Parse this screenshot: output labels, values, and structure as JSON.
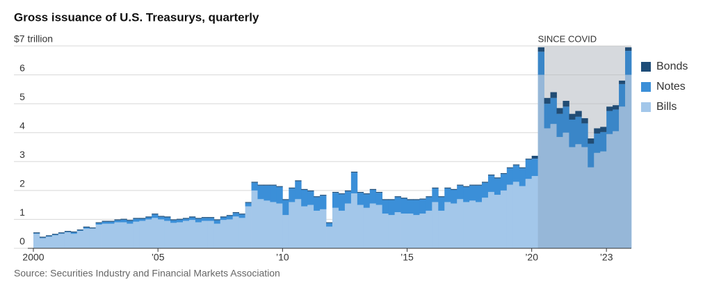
{
  "chart_data": {
    "type": "stacked-step-area",
    "title": "Gross issuance of U.S. Treasurys, quarterly",
    "source": "Source: Securities Industry and Financial Markets Association",
    "annotation": {
      "text": "SINCE COVID",
      "x0": 2020.25,
      "x1": 2024
    },
    "xlim": [
      2000,
      2024
    ],
    "xticks": [
      {
        "value": 2000,
        "label": "2000"
      },
      {
        "value": 2005,
        "label": "’05"
      },
      {
        "value": 2010,
        "label": "’10"
      },
      {
        "value": 2015,
        "label": "’15"
      },
      {
        "value": 2020,
        "label": "’20"
      },
      {
        "value": 2023,
        "label": "’23"
      }
    ],
    "ylim": [
      0,
      7
    ],
    "yticks": [
      0,
      1,
      2,
      3,
      4,
      5,
      6,
      {
        "value": 7,
        "label": "$7 trillion"
      }
    ],
    "grid": true,
    "legend": "right",
    "x": [
      2000,
      2000.25,
      2000.5,
      2000.75,
      2001,
      2001.25,
      2001.5,
      2001.75,
      2002,
      2002.25,
      2002.5,
      2002.75,
      2003,
      2003.25,
      2003.5,
      2003.75,
      2004,
      2004.25,
      2004.5,
      2004.75,
      2005,
      2005.25,
      2005.5,
      2005.75,
      2006,
      2006.25,
      2006.5,
      2006.75,
      2007,
      2007.25,
      2007.5,
      2007.75,
      2008,
      2008.25,
      2008.5,
      2008.75,
      2009,
      2009.25,
      2009.5,
      2009.75,
      2010,
      2010.25,
      2010.5,
      2010.75,
      2011,
      2011.25,
      2011.5,
      2011.75,
      2012,
      2012.25,
      2012.5,
      2012.75,
      2013,
      2013.25,
      2013.5,
      2013.75,
      2014,
      2014.25,
      2014.5,
      2014.75,
      2015,
      2015.25,
      2015.5,
      2015.75,
      2016,
      2016.25,
      2016.5,
      2016.75,
      2017,
      2017.25,
      2017.5,
      2017.75,
      2018,
      2018.25,
      2018.5,
      2018.75,
      2019,
      2019.25,
      2019.5,
      2019.75,
      2020,
      2020.25,
      2020.5,
      2020.75,
      2021,
      2021.25,
      2021.5,
      2021.75,
      2022,
      2022.25,
      2022.5,
      2022.75,
      2023,
      2023.25,
      2023.5,
      2023.75
    ],
    "series": [
      {
        "name": "Bills",
        "color": "#a3c7ea",
        "values": [
          0.5,
          0.35,
          0.4,
          0.45,
          0.5,
          0.55,
          0.5,
          0.6,
          0.68,
          0.68,
          0.82,
          0.85,
          0.85,
          0.9,
          0.9,
          0.85,
          0.92,
          0.95,
          1.0,
          1.05,
          1.0,
          0.95,
          0.88,
          0.9,
          0.95,
          0.98,
          0.9,
          0.95,
          0.95,
          0.85,
          0.98,
          1.0,
          1.1,
          1.05,
          1.45,
          2.0,
          1.7,
          1.65,
          1.6,
          1.55,
          1.15,
          1.6,
          1.7,
          1.45,
          1.5,
          1.3,
          1.35,
          0.75,
          1.4,
          1.3,
          1.55,
          1.9,
          1.5,
          1.4,
          1.55,
          1.5,
          1.2,
          1.15,
          1.25,
          1.2,
          1.2,
          1.15,
          1.2,
          1.3,
          1.6,
          1.3,
          1.6,
          1.55,
          1.7,
          1.6,
          1.65,
          1.6,
          1.75,
          1.95,
          1.85,
          2.0,
          2.2,
          2.3,
          2.15,
          2.4,
          2.5,
          6.0,
          4.15,
          4.3,
          3.85,
          4.0,
          3.5,
          3.6,
          3.5,
          2.8,
          3.3,
          3.35,
          3.95,
          4.05,
          4.9,
          6.0
        ]
      },
      {
        "name": "Notes",
        "color": "#3b8fd8",
        "values": [
          0.02,
          0.02,
          0.02,
          0.02,
          0.02,
          0.02,
          0.05,
          0.02,
          0.04,
          0.01,
          0.05,
          0.07,
          0.07,
          0.07,
          0.09,
          0.1,
          0.1,
          0.07,
          0.07,
          0.12,
          0.09,
          0.12,
          0.09,
          0.09,
          0.07,
          0.09,
          0.12,
          0.1,
          0.1,
          0.12,
          0.09,
          0.12,
          0.12,
          0.12,
          0.12,
          0.27,
          0.47,
          0.52,
          0.57,
          0.57,
          0.52,
          0.47,
          0.62,
          0.57,
          0.47,
          0.47,
          0.47,
          0.12,
          0.52,
          0.57,
          0.42,
          0.72,
          0.42,
          0.47,
          0.47,
          0.42,
          0.47,
          0.52,
          0.52,
          0.52,
          0.47,
          0.52,
          0.49,
          0.47,
          0.47,
          0.47,
          0.47,
          0.47,
          0.47,
          0.52,
          0.52,
          0.57,
          0.52,
          0.57,
          0.57,
          0.57,
          0.57,
          0.57,
          0.62,
          0.67,
          0.6,
          0.8,
          0.85,
          0.9,
          0.8,
          0.9,
          0.95,
          0.95,
          0.82,
          0.82,
          0.67,
          0.67,
          0.8,
          0.75,
          0.78,
          0.83
        ]
      },
      {
        "name": "Bonds",
        "color": "#1e4d78",
        "values": [
          0.03,
          0.03,
          0.03,
          0.03,
          0.03,
          0.03,
          0.03,
          0.03,
          0.03,
          0.03,
          0.03,
          0.03,
          0.03,
          0.03,
          0.03,
          0.03,
          0.03,
          0.03,
          0.03,
          0.03,
          0.03,
          0.03,
          0.03,
          0.03,
          0.03,
          0.03,
          0.03,
          0.03,
          0.03,
          0.03,
          0.03,
          0.03,
          0.03,
          0.03,
          0.03,
          0.03,
          0.03,
          0.03,
          0.03,
          0.03,
          0.03,
          0.03,
          0.03,
          0.03,
          0.03,
          0.03,
          0.03,
          0.03,
          0.03,
          0.03,
          0.03,
          0.03,
          0.03,
          0.03,
          0.03,
          0.03,
          0.03,
          0.03,
          0.03,
          0.03,
          0.03,
          0.03,
          0.03,
          0.03,
          0.03,
          0.03,
          0.03,
          0.03,
          0.03,
          0.03,
          0.03,
          0.03,
          0.03,
          0.03,
          0.03,
          0.03,
          0.03,
          0.03,
          0.03,
          0.03,
          0.1,
          0.15,
          0.2,
          0.2,
          0.2,
          0.2,
          0.2,
          0.2,
          0.18,
          0.18,
          0.18,
          0.18,
          0.15,
          0.15,
          0.12,
          0.12
        ]
      }
    ]
  }
}
